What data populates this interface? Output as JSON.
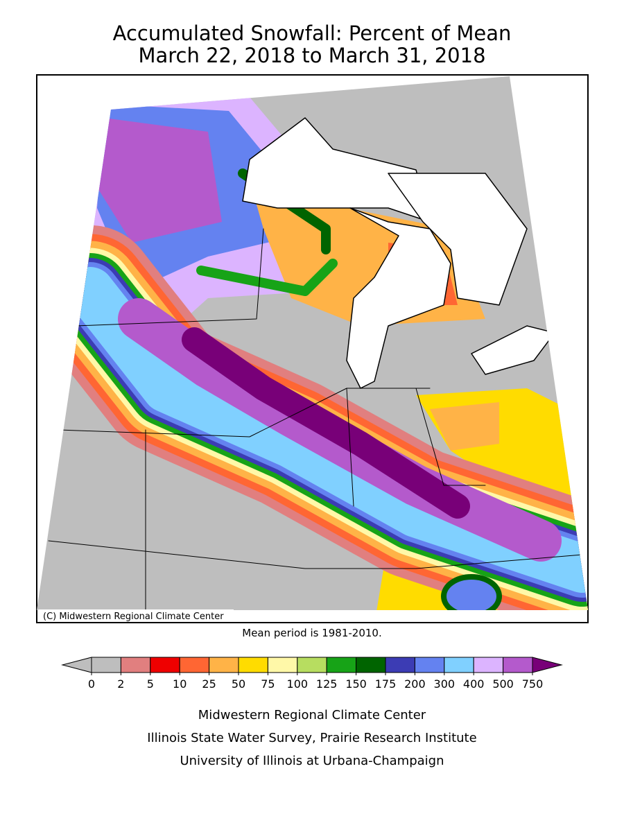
{
  "title_lines": [
    "Accumulated Snowfall: Percent of Mean",
    "March 22, 2018 to March 31, 2018"
  ],
  "copyright": "(C) Midwestern Regional Climate Center",
  "note": "Mean period is 1981-2010.",
  "legend": {
    "ticks": [
      0,
      2,
      5,
      10,
      25,
      50,
      75,
      100,
      125,
      150,
      175,
      200,
      300,
      400,
      500,
      750
    ],
    "colors": [
      "#bebebe",
      "#bebebe",
      "#e17f7f",
      "#ef0000",
      "#ff6633",
      "#ffb347",
      "#ffdc00",
      "#fff8a8",
      "#b7dd60",
      "#17a317",
      "#006400",
      "#3c3cb4",
      "#6482f0",
      "#80d0ff",
      "#dcb4ff",
      "#b45acc",
      "#780078"
    ]
  },
  "credits": [
    "Midwestern Regional Climate Center",
    "Illinois State Water Survey, Prairie Research Institute",
    "University of Illinois at Urbana-Champaign"
  ]
}
